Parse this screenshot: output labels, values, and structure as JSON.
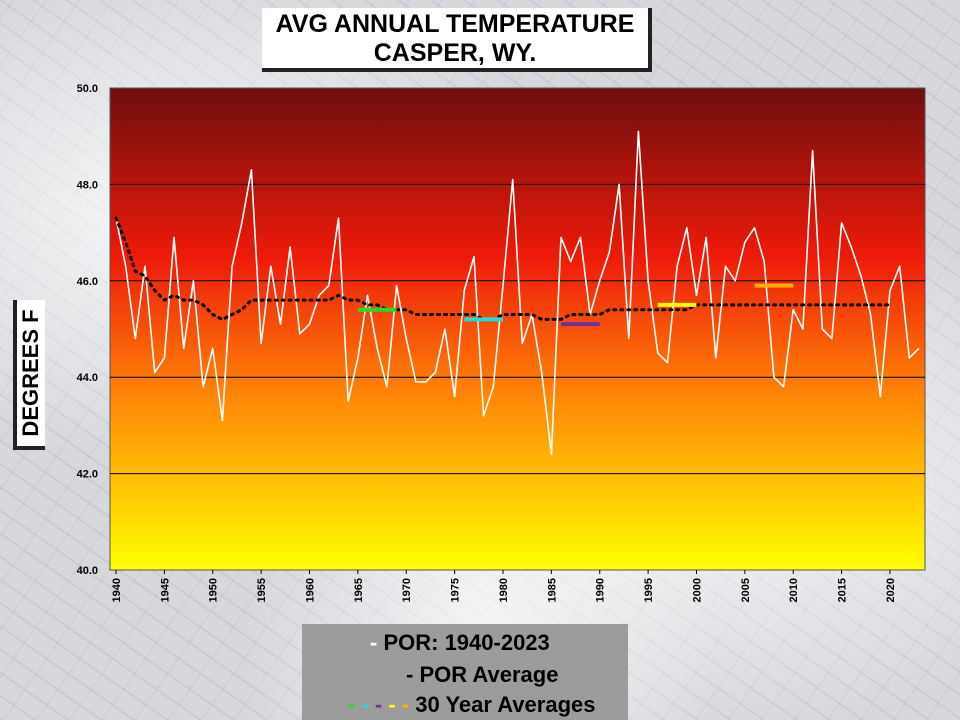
{
  "chart_data": {
    "type": "line",
    "title": "AVG ANNUAL TEMPERATURE",
    "subtitle": "CASPER, WY.",
    "ylabel": "DEGREES F",
    "xlabel": "",
    "ylim": [
      40,
      50
    ],
    "xlim": [
      1940,
      2023
    ],
    "y_ticks": [
      "40.0",
      "42.0",
      "44.0",
      "46.0",
      "48.0",
      "50.0"
    ],
    "x_ticks": [
      "1940",
      "1945",
      "1950",
      "1955",
      "1960",
      "1965",
      "1970",
      "1975",
      "1980",
      "1985",
      "1990",
      "1995",
      "2000",
      "2005",
      "2010",
      "2015",
      "2020"
    ],
    "grid": true,
    "legend_position": "bottom",
    "series": [
      {
        "name": "POR: 1940-2023",
        "color": "#ffffff",
        "style": "solid",
        "x": [
          1940,
          1941,
          1942,
          1943,
          1944,
          1945,
          1946,
          1947,
          1948,
          1949,
          1950,
          1951,
          1952,
          1953,
          1954,
          1955,
          1956,
          1957,
          1958,
          1959,
          1960,
          1961,
          1962,
          1963,
          1964,
          1965,
          1966,
          1967,
          1968,
          1969,
          1970,
          1971,
          1972,
          1973,
          1974,
          1975,
          1976,
          1977,
          1978,
          1979,
          1980,
          1981,
          1982,
          1983,
          1984,
          1985,
          1986,
          1987,
          1988,
          1989,
          1990,
          1991,
          1992,
          1993,
          1994,
          1995,
          1996,
          1997,
          1998,
          1999,
          2000,
          2001,
          2002,
          2003,
          2004,
          2005,
          2006,
          2007,
          2008,
          2009,
          2010,
          2011,
          2012,
          2013,
          2014,
          2015,
          2016,
          2017,
          2018,
          2019,
          2020,
          2021,
          2022,
          2023
        ],
        "y": [
          47.3,
          46.3,
          44.8,
          46.3,
          44.1,
          44.4,
          46.9,
          44.6,
          46.0,
          43.8,
          44.6,
          43.1,
          46.3,
          47.2,
          48.3,
          44.7,
          46.3,
          45.1,
          46.7,
          44.9,
          45.1,
          45.7,
          45.9,
          47.3,
          43.5,
          44.4,
          45.7,
          44.6,
          43.8,
          45.9,
          44.8,
          43.9,
          43.9,
          44.1,
          45.0,
          43.6,
          45.8,
          46.5,
          43.2,
          43.8,
          45.9,
          48.1,
          44.7,
          45.3,
          44.1,
          42.4,
          46.9,
          46.4,
          46.9,
          45.3,
          46.0,
          46.6,
          48.0,
          44.8,
          49.1,
          46.0,
          44.5,
          44.3,
          46.3,
          47.1,
          45.7,
          46.9,
          44.4,
          46.3,
          46.0,
          46.8,
          47.1,
          46.4,
          44.0,
          43.8,
          45.4,
          45.0,
          48.7,
          45.0,
          44.8,
          47.2,
          46.7,
          46.1,
          45.3,
          43.6,
          45.8,
          46.3,
          44.4,
          44.6
        ]
      },
      {
        "name": "POR Average",
        "color": "#000000",
        "style": "dotted",
        "x": [
          1940,
          1941,
          1942,
          1943,
          1944,
          1945,
          1946,
          1947,
          1948,
          1949,
          1950,
          1951,
          1952,
          1953,
          1954,
          1955,
          1956,
          1957,
          1958,
          1959,
          1960,
          1961,
          1962,
          1963,
          1964,
          1965,
          1966,
          1967,
          1968,
          1969,
          1970,
          1971,
          1972,
          1973,
          1974,
          1975,
          1976,
          1977,
          1978,
          1979,
          1980,
          1981,
          1982,
          1983,
          1984,
          1985,
          1986,
          1987,
          1988,
          1989,
          1990,
          1991,
          1992,
          1993,
          1994,
          1995,
          1996,
          1997,
          1998,
          1999,
          2000,
          2001,
          2002,
          2003,
          2004,
          2005,
          2006,
          2007,
          2008,
          2009,
          2010,
          2011,
          2012,
          2013,
          2014,
          2015,
          2016,
          2017,
          2018,
          2019,
          2020
        ],
        "y": [
          47.3,
          46.8,
          46.2,
          46.1,
          45.8,
          45.6,
          45.7,
          45.6,
          45.6,
          45.5,
          45.3,
          45.2,
          45.3,
          45.4,
          45.6,
          45.6,
          45.6,
          45.6,
          45.6,
          45.6,
          45.6,
          45.6,
          45.6,
          45.7,
          45.6,
          45.6,
          45.5,
          45.5,
          45.4,
          45.4,
          45.4,
          45.3,
          45.3,
          45.3,
          45.3,
          45.3,
          45.3,
          45.3,
          45.2,
          45.2,
          45.3,
          45.3,
          45.3,
          45.3,
          45.2,
          45.2,
          45.2,
          45.3,
          45.3,
          45.3,
          45.3,
          45.4,
          45.4,
          45.4,
          45.4,
          45.4,
          45.4,
          45.4,
          45.4,
          45.4,
          45.5,
          45.5,
          45.5,
          45.5,
          45.5,
          45.5,
          45.5,
          45.5,
          45.5,
          45.5,
          45.5,
          45.5,
          45.5,
          45.5,
          45.5,
          45.5,
          45.5,
          45.5,
          45.5,
          45.5,
          45.5
        ]
      }
    ],
    "thirty_year_averages": [
      {
        "x_start": 1965,
        "x_end": 1969,
        "y": 45.4,
        "color": "#22dd22"
      },
      {
        "x_start": 1976,
        "x_end": 1980,
        "y": 45.2,
        "color": "#22dddd"
      },
      {
        "x_start": 1986,
        "x_end": 1990,
        "y": 45.1,
        "color": "#7030a0"
      },
      {
        "x_start": 1996,
        "x_end": 2000,
        "y": 45.5,
        "color": "#ffff00"
      },
      {
        "x_start": 2006,
        "x_end": 2010,
        "y": 45.9,
        "color": "#ffb000"
      }
    ],
    "legend": {
      "entries": [
        {
          "label": "POR: 1940-2023",
          "marker": "-"
        },
        {
          "label": "POR Average",
          "marker": "-"
        },
        {
          "label": "30 Year Averages",
          "marker": "- - - - -"
        }
      ],
      "dash_colors": [
        "#22dd22",
        "#22dddd",
        "#7030a0",
        "#ffff00",
        "#ffb000"
      ]
    }
  }
}
